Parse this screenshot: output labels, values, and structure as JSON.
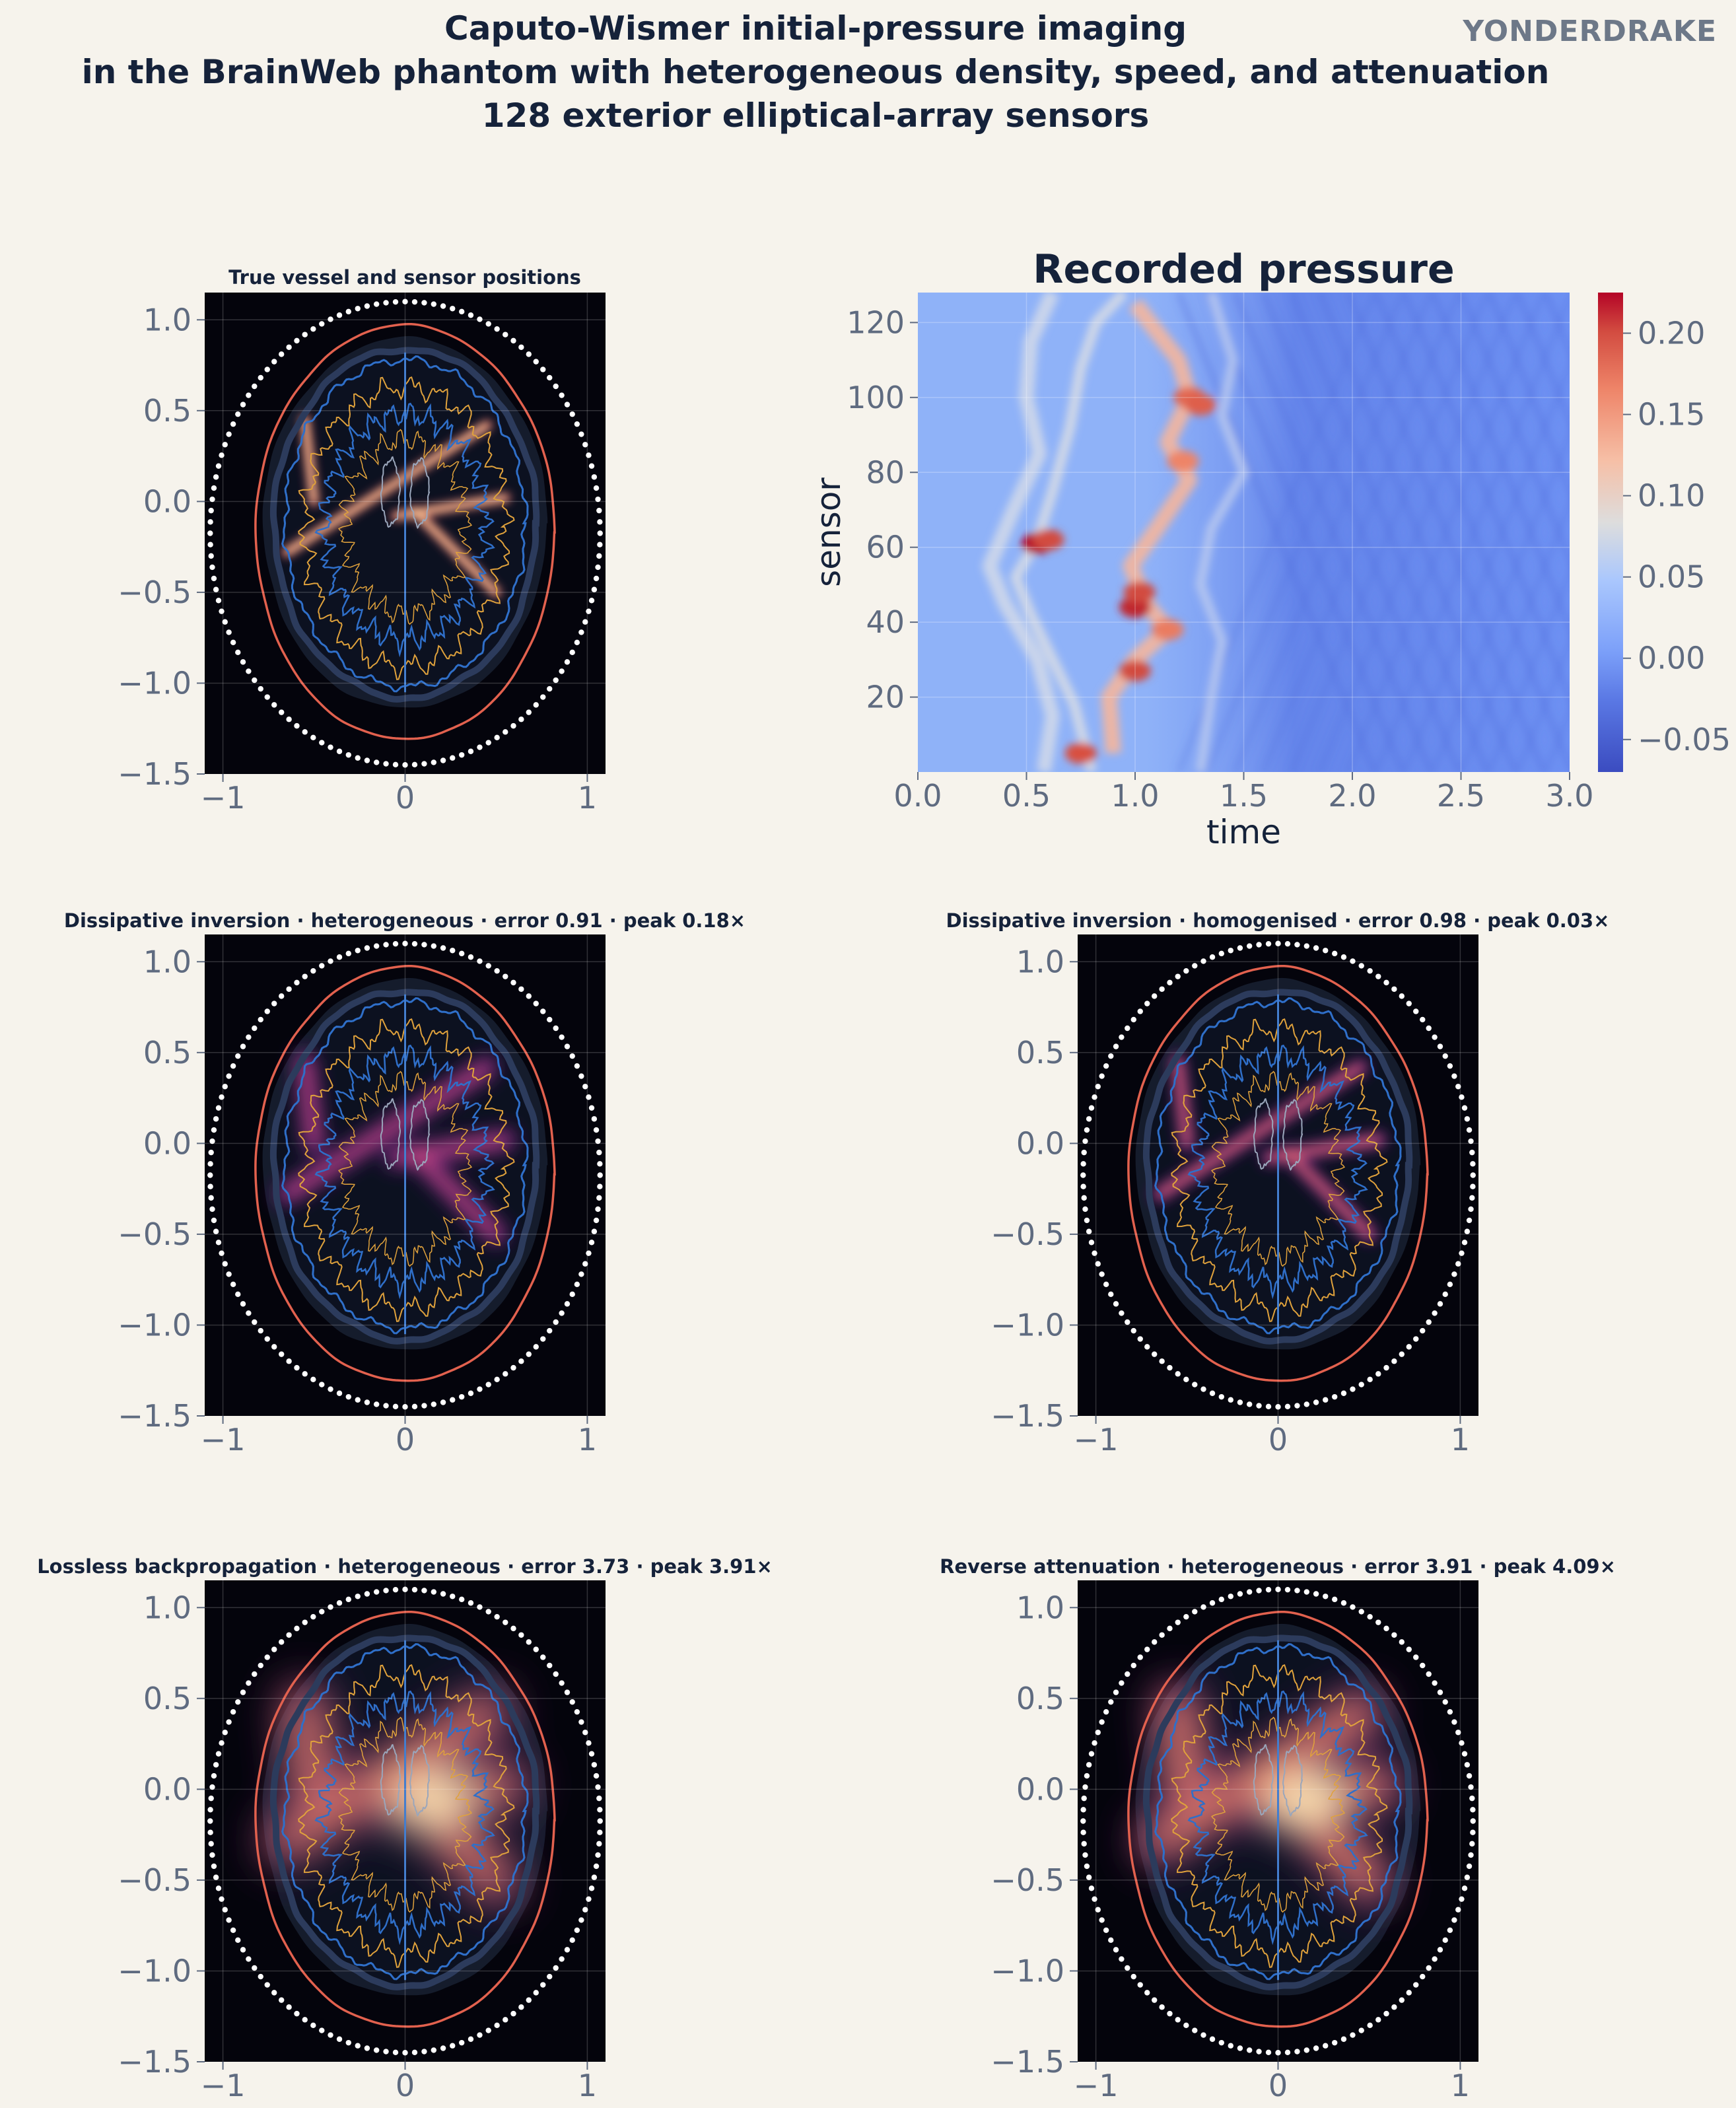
{
  "figure": {
    "title_lines": [
      "Caputo-Wismer initial-pressure imaging",
      "in the BrainWeb phantom with heterogeneous density, speed, and attenuation",
      "128 exterior elliptical-array sensors"
    ],
    "brand": "YONDERDRAKE"
  },
  "colors": {
    "background": "#f6f3ec",
    "title": "#15223a",
    "tick": "#5f6b80",
    "panel_bg": "#04040c",
    "skull_contour": "#e2614e",
    "tissue_contour": "#2f6fc9",
    "grey_matter_contour": "#e0a23c",
    "sensor_dots": "#ffffff"
  },
  "chart_data": [
    {
      "id": "true",
      "type": "heatmap",
      "title": "True vessel and sensor positions",
      "xticks": [
        "−1",
        "0",
        "1"
      ],
      "yticks": [
        "1.0",
        "0.5",
        "0.0",
        "−0.5",
        "−1.0",
        "−1.5"
      ],
      "xlim": [
        -1.1,
        1.1
      ],
      "ylim": [
        -1.5,
        1.15
      ],
      "sensors": {
        "count": 128,
        "ellipse_center": [
          0,
          -0.175
        ],
        "semi_axes": [
          1.07,
          1.275
        ]
      },
      "vessels": [
        {
          "from": [
            -0.55,
            0.45
          ],
          "to": [
            -0.5,
            0.0
          ],
          "amplitude": 1.0
        },
        {
          "from": [
            -0.65,
            -0.28
          ],
          "to": [
            0.45,
            0.42
          ],
          "amplitude": 1.0
        },
        {
          "from": [
            -0.05,
            -0.08
          ],
          "to": [
            0.55,
            0.02
          ],
          "amplitude": 1.0
        },
        {
          "from": [
            0.05,
            -0.05
          ],
          "to": [
            0.5,
            -0.5
          ],
          "amplitude": 1.0
        }
      ],
      "render": {
        "style": "sharp",
        "blur": 0.025
      }
    },
    {
      "id": "recorded",
      "type": "heatmap",
      "title": "Recorded pressure",
      "xlabel": "time",
      "ylabel": "sensor",
      "xlim": [
        0.0,
        3.0
      ],
      "ylim": [
        0,
        128
      ],
      "xticks": [
        "0.0",
        "0.5",
        "1.0",
        "1.5",
        "2.0",
        "2.5",
        "3.0"
      ],
      "yticks": [
        "20",
        "40",
        "60",
        "80",
        "100",
        "120"
      ],
      "colorbar": {
        "ticks": [
          "0.20",
          "0.15",
          "0.10",
          "0.05",
          "0.00",
          "−0.05"
        ],
        "range": [
          -0.07,
          0.225
        ]
      },
      "peak": {
        "time": 0.55,
        "sensor": 61,
        "value": 0.22
      }
    },
    {
      "id": "diss-het",
      "type": "heatmap",
      "title": "Dissipative inversion · heterogeneous · error 0.91 · peak 0.18×",
      "xticks": [
        "−1",
        "0",
        "1"
      ],
      "yticks": [
        "1.0",
        "0.5",
        "0.0",
        "−0.5",
        "−1.0",
        "−1.5"
      ],
      "xlim": [
        -1.1,
        1.1
      ],
      "ylim": [
        -1.5,
        1.15
      ],
      "error": 0.91,
      "peak": 0.18,
      "render": {
        "style": "blur",
        "blur": 0.05
      }
    },
    {
      "id": "diss-hom",
      "type": "heatmap",
      "title": "Dissipative inversion · homogenised · error 0.98 · peak 0.03×",
      "xticks": [
        "−1",
        "0",
        "1"
      ],
      "yticks": [
        "1.0",
        "0.5",
        "0.0",
        "−0.5",
        "−1.0",
        "−1.5"
      ],
      "xlim": [
        -1.1,
        1.1
      ],
      "ylim": [
        -1.5,
        1.15
      ],
      "error": 0.98,
      "peak": 0.03,
      "render": {
        "style": "mid",
        "blur": 0.035
      }
    },
    {
      "id": "lossless",
      "type": "heatmap",
      "title": "Lossless backpropagation · heterogeneous · error 3.73 · peak 3.91×",
      "xticks": [
        "−1",
        "0",
        "1"
      ],
      "yticks": [
        "1.0",
        "0.5",
        "0.0",
        "−0.5",
        "−1.0",
        "−1.5"
      ],
      "xlim": [
        -1.1,
        1.1
      ],
      "ylim": [
        -1.5,
        1.15
      ],
      "error": 3.73,
      "peak": 3.91,
      "render": {
        "style": "glow",
        "blur": 0.11
      }
    },
    {
      "id": "reverse",
      "type": "heatmap",
      "title": "Reverse attenuation · heterogeneous · error 3.91 · peak 4.09×",
      "xticks": [
        "−1",
        "0",
        "1"
      ],
      "yticks": [
        "1.0",
        "0.5",
        "0.0",
        "−0.5",
        "−1.0",
        "−1.5"
      ],
      "xlim": [
        -1.1,
        1.1
      ],
      "ylim": [
        -1.5,
        1.15
      ],
      "error": 3.91,
      "peak": 4.09,
      "render": {
        "style": "glow",
        "blur": 0.1
      }
    }
  ]
}
